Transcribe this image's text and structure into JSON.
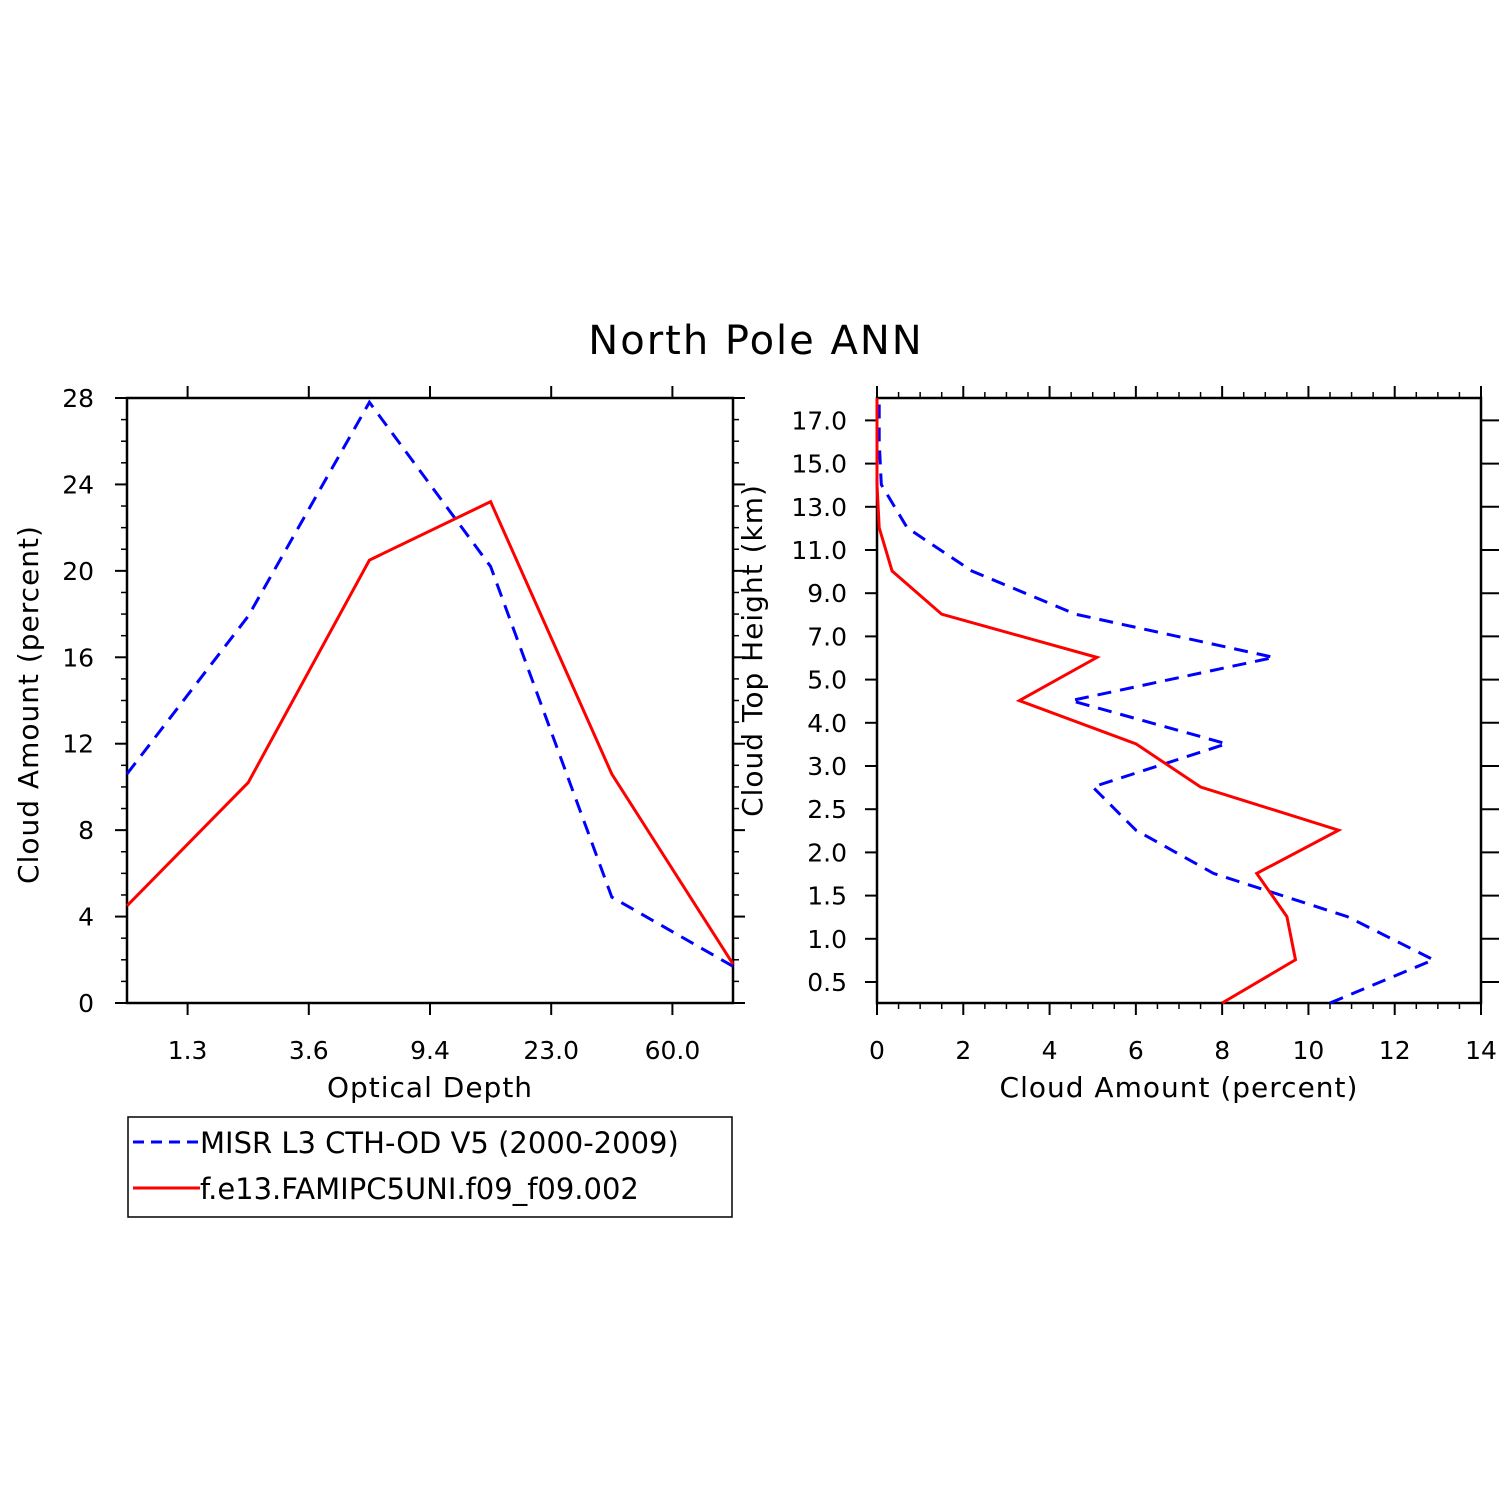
{
  "figure": {
    "title": "North Pole ANN",
    "legend": {
      "placement": "below-left",
      "entries": [
        {
          "label": "MISR L3 CTH-OD V5 (2000-2009)",
          "color": "#0000ff",
          "style": "dashed"
        },
        {
          "label": "f.e13.FAMIPC5UNI.f09_f09.002",
          "color": "#ff0000",
          "style": "solid"
        }
      ]
    }
  },
  "chart_data": [
    {
      "type": "line",
      "xlabel": "Optical Depth",
      "ylabel": "Cloud Amount (percent)",
      "x_tick_labels": [
        "1.3",
        "3.6",
        "9.4",
        "23.0",
        "60.0"
      ],
      "y_ticks": [
        0,
        4,
        8,
        12,
        16,
        20,
        24,
        28
      ],
      "ylim": [
        0,
        28
      ],
      "grid": false,
      "series": [
        {
          "name": "MISR L3 CTH-OD V5 (2000-2009)",
          "color": "#0000ff",
          "style": "dashed",
          "values": [
            10.6,
            17.9,
            27.8,
            20.2,
            4.9,
            1.7
          ]
        },
        {
          "name": "f.e13.FAMIPC5UNI.f09_f09.002",
          "color": "#ff0000",
          "style": "solid",
          "values": [
            4.5,
            10.2,
            20.5,
            23.2,
            10.6,
            1.8
          ]
        }
      ]
    },
    {
      "type": "line",
      "xlabel": "Cloud Amount (percent)",
      "ylabel": "Cloud Top Height (km)",
      "x_ticks": [
        0,
        2,
        4,
        6,
        8,
        10,
        12,
        14
      ],
      "xlim": [
        0,
        14
      ],
      "y_tick_labels": [
        "0.5",
        "1.0",
        "1.5",
        "2.0",
        "2.5",
        "3.0",
        "4.0",
        "5.0",
        "7.0",
        "9.0",
        "11.0",
        "13.0",
        "15.0",
        "17.0"
      ],
      "grid": false,
      "series": [
        {
          "name": "MISR L3 CTH-OD V5 (2000-2009)",
          "color": "#0000ff",
          "style": "dashed",
          "values": [
            10.5,
            12.9,
            10.9,
            7.8,
            6.0,
            5.0,
            8.1,
            4.5,
            9.2,
            4.6,
            2.2,
            0.7,
            0.1,
            0.05,
            0.05
          ]
        },
        {
          "name": "f.e13.FAMIPC5UNI.f09_f09.002",
          "color": "#ff0000",
          "style": "solid",
          "values": [
            8.0,
            9.7,
            9.5,
            8.8,
            10.7,
            7.5,
            6.0,
            3.3,
            5.1,
            1.5,
            0.35,
            0.05,
            0.0,
            0.0,
            0.0
          ]
        }
      ]
    }
  ]
}
